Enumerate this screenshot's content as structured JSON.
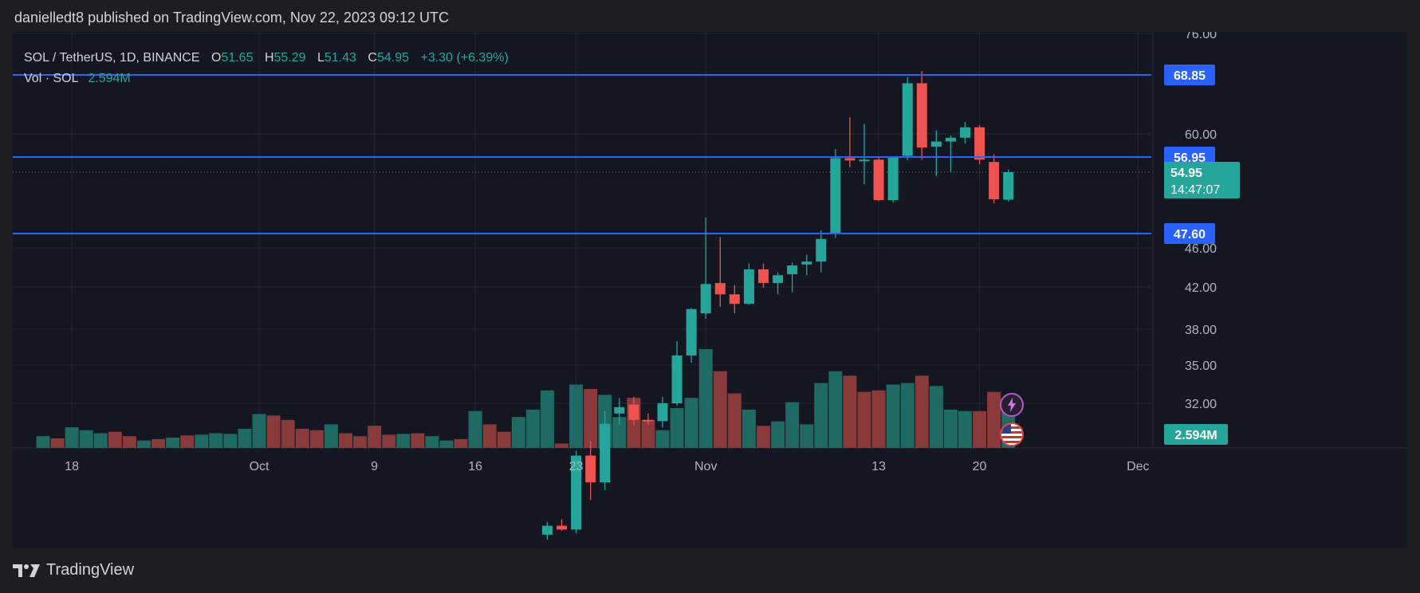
{
  "header": {
    "publish_text": "danielledt8 published on TradingView.com, Nov 22, 2023 09:12 UTC"
  },
  "legend": {
    "symbol": "SOL / TetherUS, 1D, BINANCE",
    "open_label": "O",
    "open": "51.65",
    "high_label": "H",
    "high": "55.29",
    "low_label": "L",
    "low": "51.43",
    "close_label": "C",
    "close": "54.95",
    "change": "+3.30 (+6.39%)",
    "vol_label": "Vol · SOL",
    "vol_value": "2.594M"
  },
  "footer": {
    "brand": "TradingView"
  },
  "colors": {
    "up": "#26a69a",
    "down": "#ef5350",
    "vol_up": "#1f6b63",
    "vol_down": "#8a3a3a",
    "hline": "#2962ff",
    "grid": "#242733",
    "bg": "#141722"
  },
  "icons": [
    "lightning-icon",
    "us-flag-icon"
  ],
  "chart_data": {
    "type": "candlestick",
    "price_axis_ticks": [
      "76.00",
      "60.00",
      "46.00",
      "42.00",
      "38.00",
      "35.00",
      "32.00"
    ],
    "time_axis_ticks": [
      {
        "label": "18",
        "index": 2
      },
      {
        "label": "Oct",
        "index": 15
      },
      {
        "label": "9",
        "index": 23
      },
      {
        "label": "16",
        "index": 30
      },
      {
        "label": "23",
        "index": 37
      },
      {
        "label": "Nov",
        "index": 46
      },
      {
        "label": "13",
        "index": 58
      },
      {
        "label": "20",
        "index": 65
      },
      {
        "label": "Dec",
        "index": 76
      }
    ],
    "horizontal_levels": [
      {
        "label": "68.85",
        "value": 68.85
      },
      {
        "label": "56.95",
        "value": 56.95
      },
      {
        "label": "47.60",
        "value": 47.6
      }
    ],
    "last_price": {
      "label": "54.95",
      "countdown": "14:47:07",
      "value": 54.95
    },
    "last_volume": {
      "label": "2.594M"
    },
    "candles": [
      {
        "i": 35,
        "o": 21.7,
        "h": 22.7,
        "l": 21.3,
        "c": 22.4
      },
      {
        "i": 36,
        "o": 22.4,
        "h": 22.9,
        "l": 22.0,
        "c": 22.1
      },
      {
        "i": 37,
        "o": 22.1,
        "h": 28.3,
        "l": 21.8,
        "c": 27.9
      },
      {
        "i": 38,
        "o": 27.9,
        "h": 29.0,
        "l": 24.4,
        "c": 25.8
      },
      {
        "i": 39,
        "o": 25.8,
        "h": 31.4,
        "l": 25.2,
        "c": 30.4
      },
      {
        "i": 40,
        "o": 31.2,
        "h": 32.4,
        "l": 30.3,
        "c": 31.7
      },
      {
        "i": 41,
        "o": 31.9,
        "h": 32.5,
        "l": 30.3,
        "c": 30.7
      },
      {
        "i": 42,
        "o": 30.7,
        "h": 31.2,
        "l": 30.3,
        "c": 30.6
      },
      {
        "i": 43,
        "o": 30.6,
        "h": 32.5,
        "l": 30.1,
        "c": 32.0
      },
      {
        "i": 44,
        "o": 32.0,
        "h": 37.0,
        "l": 31.8,
        "c": 35.8
      },
      {
        "i": 45,
        "o": 35.8,
        "h": 40.0,
        "l": 35.2,
        "c": 39.9
      },
      {
        "i": 46,
        "o": 39.5,
        "h": 49.5,
        "l": 39.0,
        "c": 42.3
      },
      {
        "i": 47,
        "o": 42.4,
        "h": 47.2,
        "l": 40.1,
        "c": 41.3
      },
      {
        "i": 48,
        "o": 41.3,
        "h": 42.2,
        "l": 39.5,
        "c": 40.4
      },
      {
        "i": 49,
        "o": 40.4,
        "h": 44.4,
        "l": 40.3,
        "c": 43.8
      },
      {
        "i": 50,
        "o": 43.8,
        "h": 44.4,
        "l": 41.9,
        "c": 42.4
      },
      {
        "i": 51,
        "o": 42.4,
        "h": 43.5,
        "l": 41.3,
        "c": 43.2
      },
      {
        "i": 52,
        "o": 43.3,
        "h": 44.5,
        "l": 41.5,
        "c": 44.2
      },
      {
        "i": 53,
        "o": 44.3,
        "h": 45.3,
        "l": 43.2,
        "c": 44.6
      },
      {
        "i": 54,
        "o": 44.6,
        "h": 48.0,
        "l": 43.5,
        "c": 47.0
      },
      {
        "i": 55,
        "o": 47.6,
        "h": 58.0,
        "l": 47.1,
        "c": 56.8
      },
      {
        "i": 56,
        "o": 56.8,
        "h": 62.5,
        "l": 55.6,
        "c": 56.5
      },
      {
        "i": 57,
        "o": 56.5,
        "h": 61.5,
        "l": 53.5,
        "c": 56.6
      },
      {
        "i": 58,
        "o": 56.6,
        "h": 57.0,
        "l": 51.5,
        "c": 51.6
      },
      {
        "i": 59,
        "o": 51.6,
        "h": 57.0,
        "l": 51.3,
        "c": 56.9
      },
      {
        "i": 60,
        "o": 57.1,
        "h": 68.5,
        "l": 56.5,
        "c": 67.6
      },
      {
        "i": 61,
        "o": 67.6,
        "h": 69.5,
        "l": 56.6,
        "c": 58.2
      },
      {
        "i": 62,
        "o": 58.3,
        "h": 60.5,
        "l": 54.5,
        "c": 59.0
      },
      {
        "i": 63,
        "o": 59.0,
        "h": 59.8,
        "l": 55.0,
        "c": 59.5
      },
      {
        "i": 64,
        "o": 59.5,
        "h": 61.8,
        "l": 58.7,
        "c": 61.0
      },
      {
        "i": 65,
        "o": 61.0,
        "h": 61.3,
        "l": 56.0,
        "c": 56.6
      },
      {
        "i": 66,
        "o": 56.3,
        "h": 57.3,
        "l": 51.2,
        "c": 51.7
      },
      {
        "i": 67,
        "o": 51.65,
        "h": 55.29,
        "l": 51.43,
        "c": 54.95
      }
    ],
    "volumes": [
      {
        "i": 0,
        "v": 0.8,
        "up": true
      },
      {
        "i": 1,
        "v": 0.65,
        "up": false
      },
      {
        "i": 2,
        "v": 1.4,
        "up": true
      },
      {
        "i": 3,
        "v": 1.2,
        "up": true
      },
      {
        "i": 4,
        "v": 1.0,
        "up": true
      },
      {
        "i": 5,
        "v": 1.1,
        "up": false
      },
      {
        "i": 6,
        "v": 0.8,
        "up": false
      },
      {
        "i": 7,
        "v": 0.5,
        "up": true
      },
      {
        "i": 8,
        "v": 0.6,
        "up": false
      },
      {
        "i": 9,
        "v": 0.7,
        "up": true
      },
      {
        "i": 10,
        "v": 0.85,
        "up": false
      },
      {
        "i": 11,
        "v": 0.9,
        "up": true
      },
      {
        "i": 12,
        "v": 1.0,
        "up": true
      },
      {
        "i": 13,
        "v": 0.95,
        "up": true
      },
      {
        "i": 14,
        "v": 1.3,
        "up": true
      },
      {
        "i": 15,
        "v": 2.3,
        "up": true
      },
      {
        "i": 16,
        "v": 2.2,
        "up": false
      },
      {
        "i": 17,
        "v": 1.9,
        "up": false
      },
      {
        "i": 18,
        "v": 1.3,
        "up": false
      },
      {
        "i": 19,
        "v": 1.2,
        "up": false
      },
      {
        "i": 20,
        "v": 1.6,
        "up": true
      },
      {
        "i": 21,
        "v": 1.0,
        "up": false
      },
      {
        "i": 22,
        "v": 0.8,
        "up": false
      },
      {
        "i": 23,
        "v": 1.5,
        "up": false
      },
      {
        "i": 24,
        "v": 0.9,
        "up": false
      },
      {
        "i": 25,
        "v": 0.95,
        "up": true
      },
      {
        "i": 26,
        "v": 1.0,
        "up": false
      },
      {
        "i": 27,
        "v": 0.8,
        "up": true
      },
      {
        "i": 28,
        "v": 0.5,
        "up": true
      },
      {
        "i": 29,
        "v": 0.6,
        "up": false
      },
      {
        "i": 30,
        "v": 2.5,
        "up": true
      },
      {
        "i": 31,
        "v": 1.6,
        "up": false
      },
      {
        "i": 32,
        "v": 1.1,
        "up": false
      },
      {
        "i": 33,
        "v": 2.1,
        "up": true
      },
      {
        "i": 34,
        "v": 2.6,
        "up": true
      },
      {
        "i": 35,
        "v": 3.9,
        "up": true
      },
      {
        "i": 36,
        "v": 0.3,
        "up": false
      },
      {
        "i": 37,
        "v": 4.3,
        "up": true
      },
      {
        "i": 38,
        "v": 4.0,
        "up": false
      },
      {
        "i": 39,
        "v": 3.6,
        "up": true
      },
      {
        "i": 40,
        "v": 2.1,
        "up": true
      },
      {
        "i": 41,
        "v": 3.4,
        "up": false
      },
      {
        "i": 42,
        "v": 1.9,
        "up": false
      },
      {
        "i": 43,
        "v": 1.2,
        "up": true
      },
      {
        "i": 44,
        "v": 2.7,
        "up": true
      },
      {
        "i": 45,
        "v": 3.4,
        "up": true
      },
      {
        "i": 46,
        "v": 6.7,
        "up": true
      },
      {
        "i": 47,
        "v": 5.2,
        "up": false
      },
      {
        "i": 48,
        "v": 3.7,
        "up": false
      },
      {
        "i": 49,
        "v": 2.6,
        "up": true
      },
      {
        "i": 50,
        "v": 1.5,
        "up": false
      },
      {
        "i": 51,
        "v": 1.8,
        "up": true
      },
      {
        "i": 52,
        "v": 3.1,
        "up": true
      },
      {
        "i": 53,
        "v": 1.6,
        "up": true
      },
      {
        "i": 54,
        "v": 4.4,
        "up": true
      },
      {
        "i": 55,
        "v": 5.2,
        "up": true
      },
      {
        "i": 56,
        "v": 4.9,
        "up": false
      },
      {
        "i": 57,
        "v": 3.8,
        "up": false
      },
      {
        "i": 58,
        "v": 3.9,
        "up": false
      },
      {
        "i": 59,
        "v": 4.3,
        "up": true
      },
      {
        "i": 60,
        "v": 4.4,
        "up": true
      },
      {
        "i": 61,
        "v": 4.9,
        "up": false
      },
      {
        "i": 62,
        "v": 4.2,
        "up": true
      },
      {
        "i": 63,
        "v": 2.6,
        "up": true
      },
      {
        "i": 64,
        "v": 2.5,
        "up": true
      },
      {
        "i": 65,
        "v": 2.5,
        "up": false
      },
      {
        "i": 66,
        "v": 3.8,
        "up": false
      },
      {
        "i": 67,
        "v": 2.594,
        "up": true
      }
    ]
  }
}
